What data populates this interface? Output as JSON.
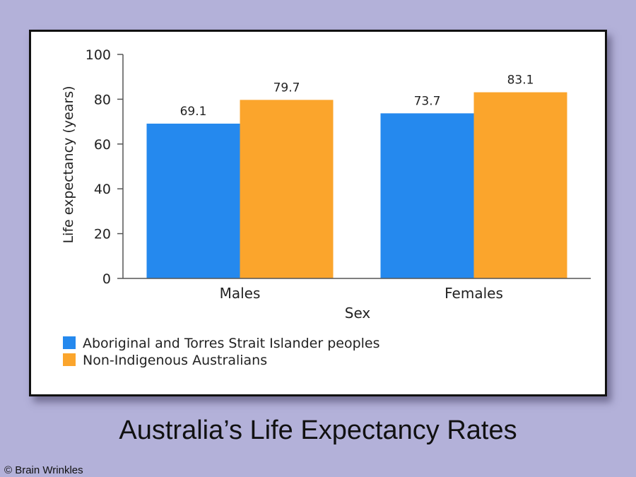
{
  "slide": {
    "title": "Australia’s Life Expectancy Rates",
    "copyright": "© Brain Wrinkles"
  },
  "chart_data": {
    "type": "bar",
    "title": "",
    "xlabel": "Sex",
    "ylabel": "Life expectancy (years)",
    "ylim": [
      0,
      100
    ],
    "yticks": [
      0,
      20,
      40,
      60,
      80,
      100
    ],
    "categories": [
      "Males",
      "Females"
    ],
    "series": [
      {
        "name": "Aboriginal and Torres Strait Islander peoples",
        "color": "#2589ee",
        "values": [
          69.1,
          73.7
        ],
        "labels": [
          "69.1",
          "73.7"
        ]
      },
      {
        "name": "Non-Indigenous Australians",
        "color": "#fba52c",
        "values": [
          79.7,
          83.1
        ],
        "labels": [
          "79.7",
          "83.1"
        ]
      }
    ],
    "grid": false,
    "legend_position": "bottom-left"
  }
}
